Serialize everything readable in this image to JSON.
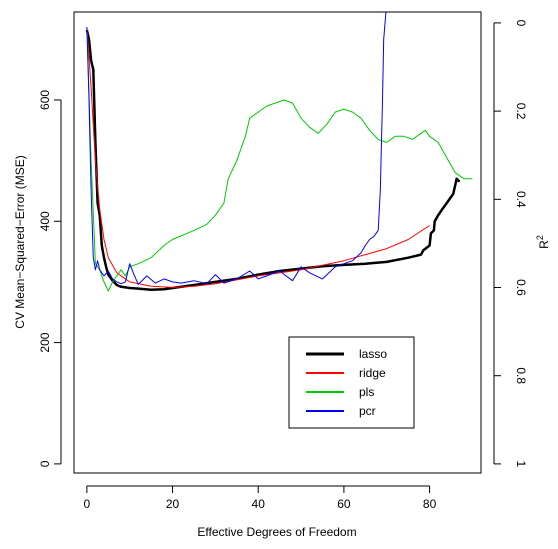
{
  "chart_data": {
    "type": "line",
    "xlabel": "Effective Degrees of Freedom",
    "ylabel": "CV Mean−Squared−Error (MSE)",
    "y2label": "R",
    "y2label_superscript": "2",
    "xlim": [
      -3,
      92
    ],
    "ylim": [
      -15,
      745
    ],
    "x_ticks": [
      0,
      20,
      40,
      60,
      80
    ],
    "y_ticks": [
      0,
      200,
      400,
      600
    ],
    "y2_ticks": [
      0,
      0.2,
      0.4,
      0.6,
      0.8,
      1
    ],
    "y2_tick_labels": [
      "0",
      "0.2",
      "0.4",
      "0.6",
      "0.8",
      "1"
    ],
    "y2_mapping": "y = 727 * (1 - R^2)",
    "grid": false,
    "legend_position": "bottom-right",
    "legend_entries": [
      "lasso",
      "ridge",
      "pls",
      "pcr"
    ],
    "series": [
      {
        "name": "lasso",
        "color": "#000000",
        "width": 2.5,
        "x": [
          0,
          0.5,
          1,
          1.5,
          2,
          2.5,
          3,
          3.5,
          4,
          4.5,
          5,
          6,
          7,
          8,
          10,
          12,
          15,
          18,
          20,
          25,
          30,
          35,
          40,
          45,
          50,
          55,
          60,
          65,
          70,
          75,
          78,
          78.5,
          80,
          80.3,
          81,
          81.2,
          82,
          83,
          84,
          85,
          85.5,
          86,
          86.3,
          87
        ],
        "y": [
          715,
          700,
          665,
          650,
          530,
          430,
          410,
          360,
          340,
          325,
          312,
          302,
          295,
          292,
          290,
          289,
          287,
          288,
          290,
          295,
          300,
          305,
          312,
          318,
          322,
          326,
          328,
          330,
          333,
          340,
          345,
          352,
          360,
          380,
          385,
          400,
          410,
          420,
          430,
          440,
          445,
          460,
          470,
          465
        ]
      },
      {
        "name": "ridge",
        "color": "#ff0000",
        "width": 1,
        "x": [
          0,
          1,
          2,
          3,
          4,
          5,
          7,
          10,
          15,
          20,
          25,
          30,
          40,
          50,
          60,
          70,
          75,
          80
        ],
        "y": [
          720,
          620,
          500,
          420,
          370,
          340,
          315,
          300,
          293,
          291,
          293,
          297,
          310,
          320,
          335,
          355,
          370,
          393
        ]
      },
      {
        "name": "pls",
        "color": "#00cc00",
        "width": 1,
        "x": [
          0,
          1,
          2,
          3,
          4,
          5,
          6,
          7,
          8,
          9,
          10,
          12,
          15,
          18,
          20,
          25,
          28,
          30,
          32,
          33,
          35,
          37,
          38,
          40,
          42,
          44,
          46,
          48,
          50,
          52,
          54,
          56,
          58,
          60,
          62,
          64,
          66,
          68,
          70,
          72,
          74,
          76,
          78,
          79,
          80,
          82,
          84,
          86,
          88,
          90
        ],
        "y": [
          720,
          500,
          330,
          320,
          300,
          285,
          300,
          310,
          320,
          310,
          325,
          330,
          340,
          360,
          370,
          385,
          395,
          410,
          430,
          470,
          500,
          540,
          570,
          580,
          590,
          595,
          600,
          595,
          570,
          555,
          545,
          560,
          580,
          585,
          580,
          570,
          550,
          535,
          530,
          540,
          540,
          535,
          545,
          550,
          540,
          530,
          505,
          480,
          470,
          470
        ]
      },
      {
        "name": "pcr",
        "color": "#0000ff",
        "width": 1,
        "x": [
          0,
          0.5,
          1,
          1.5,
          2,
          2.5,
          3,
          4,
          5,
          6,
          7,
          8,
          9,
          10,
          11,
          12,
          14,
          16,
          18,
          20,
          22,
          25,
          28,
          30,
          32,
          35,
          38,
          40,
          42,
          45,
          48,
          50,
          52,
          55,
          58,
          60,
          62,
          64,
          65,
          66,
          67,
          68,
          68.5,
          69,
          69.3,
          70
        ],
        "y": [
          720,
          600,
          450,
          340,
          320,
          335,
          320,
          310,
          318,
          305,
          300,
          297,
          300,
          330,
          312,
          296,
          310,
          298,
          305,
          300,
          298,
          302,
          297,
          312,
          298,
          305,
          318,
          305,
          310,
          318,
          302,
          325,
          315,
          305,
          325,
          330,
          335,
          348,
          360,
          370,
          375,
          385,
          450,
          600,
          700,
          760
        ]
      }
    ]
  }
}
